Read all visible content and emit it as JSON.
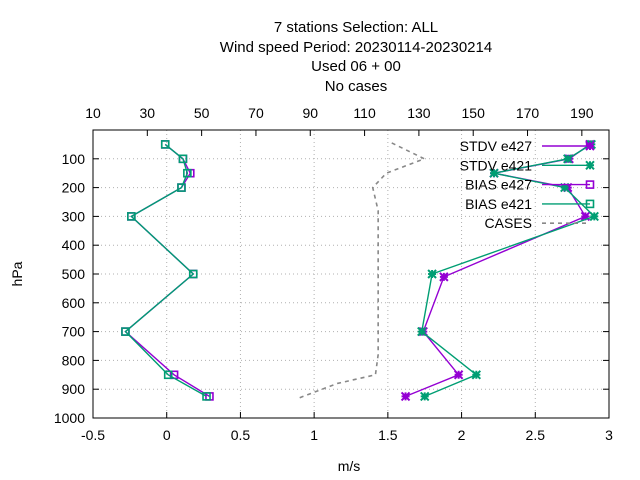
{
  "chart_data": {
    "type": "line",
    "title_lines": [
      "7 stations Selection: ALL",
      "Wind speed  Period: 20230114-20230214",
      "Used  06  + 00",
      "No cases"
    ],
    "xlabel": "m/s",
    "ylabel": "hPa",
    "xlim": [
      -0.5,
      3
    ],
    "x_ticks": [
      "-0.5",
      "0",
      "0.5",
      "1",
      "1.5",
      "2",
      "2.5",
      "3"
    ],
    "x_tick_values": [
      -0.5,
      0,
      0.5,
      1,
      1.5,
      2,
      2.5,
      3
    ],
    "x2lim": [
      10,
      200
    ],
    "x2_ticks": [
      "10",
      "30",
      "50",
      "70",
      "90",
      "110",
      "130",
      "150",
      "170",
      "190"
    ],
    "x2_tick_values": [
      10,
      30,
      50,
      70,
      90,
      110,
      130,
      150,
      170,
      190
    ],
    "ylim": [
      1000,
      0
    ],
    "y_ticks": [
      "100",
      "200",
      "300",
      "400",
      "500",
      "600",
      "700",
      "800",
      "900",
      "1000"
    ],
    "y_tick_values": [
      100,
      200,
      300,
      400,
      500,
      600,
      700,
      800,
      900,
      1000
    ],
    "grid": true,
    "legend_position": "top-right",
    "series": [
      {
        "name": "STDV e427",
        "color": "#9400d3",
        "marker": "x-star",
        "points": [
          [
            2.87,
            50
          ],
          [
            2.73,
            100
          ],
          [
            2.22,
            150
          ],
          [
            2.72,
            200
          ],
          [
            2.84,
            300
          ],
          [
            1.88,
            510
          ],
          [
            1.74,
            700
          ],
          [
            1.98,
            850
          ],
          [
            1.62,
            925
          ]
        ]
      },
      {
        "name": "STDV e421",
        "color": "#009e73",
        "marker": "x-star",
        "points": [
          [
            2.88,
            50
          ],
          [
            2.72,
            100
          ],
          [
            2.22,
            150
          ],
          [
            2.7,
            200
          ],
          [
            2.9,
            300
          ],
          [
            1.8,
            500
          ],
          [
            1.73,
            700
          ],
          [
            2.1,
            850
          ],
          [
            1.75,
            925
          ]
        ]
      },
      {
        "name": "BIAS e427",
        "color": "#9400d3",
        "marker": "square",
        "points": [
          [
            -0.01,
            50
          ],
          [
            0.11,
            100
          ],
          [
            0.16,
            150
          ],
          [
            0.1,
            200
          ],
          [
            -0.24,
            300
          ],
          [
            0.18,
            500
          ],
          [
            -0.28,
            700
          ],
          [
            0.05,
            850
          ],
          [
            0.29,
            925
          ]
        ]
      },
      {
        "name": "BIAS e421",
        "color": "#009e73",
        "marker": "square",
        "points": [
          [
            -0.01,
            50
          ],
          [
            0.11,
            100
          ],
          [
            0.14,
            150
          ],
          [
            0.1,
            200
          ],
          [
            -0.24,
            300
          ],
          [
            0.18,
            500
          ],
          [
            -0.28,
            700
          ],
          [
            0.01,
            850
          ],
          [
            0.27,
            925
          ]
        ]
      },
      {
        "name": "CASES",
        "color": "#888888",
        "dashed": true,
        "axis": "x2",
        "points": [
          [
            120,
            45
          ],
          [
            132,
            100
          ],
          [
            118,
            150
          ],
          [
            113,
            200
          ],
          [
            115,
            280
          ],
          [
            115,
            400
          ],
          [
            115,
            600
          ],
          [
            115,
            780
          ],
          [
            114,
            850
          ],
          [
            100,
            880
          ],
          [
            86,
            930
          ]
        ]
      }
    ]
  }
}
